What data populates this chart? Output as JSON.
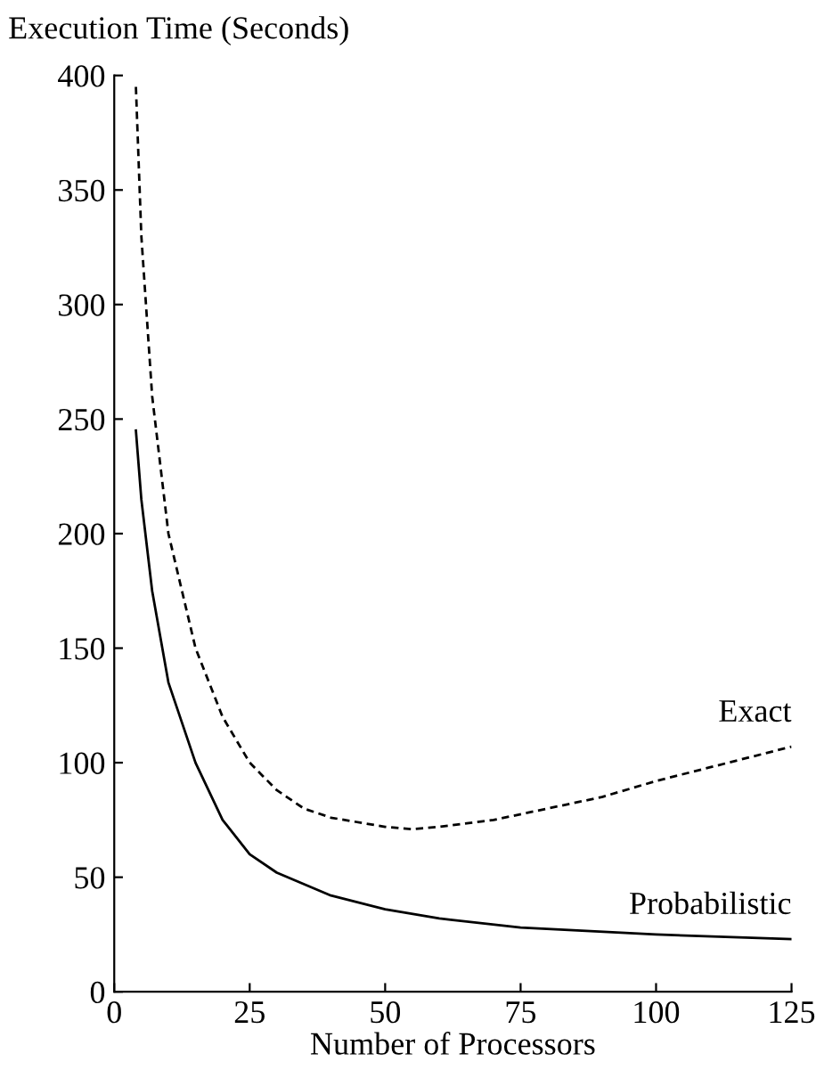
{
  "chart_data": {
    "type": "line",
    "ylabel": "Execution Time (Seconds)",
    "xlabel": "Number of Processors",
    "xlim": [
      0,
      125
    ],
    "xticks": [
      0,
      25,
      50,
      75,
      100,
      125
    ],
    "ylim": [
      0,
      400
    ],
    "yticks": [
      0,
      50,
      100,
      150,
      200,
      250,
      300,
      350,
      400
    ],
    "grid": false,
    "legend": false,
    "series": [
      {
        "name": "Exact",
        "color": "#000000",
        "line_style": "dashed",
        "x": [
          4,
          5,
          7,
          10,
          15,
          20,
          25,
          30,
          35,
          40,
          50,
          55,
          60,
          70,
          80,
          90,
          100,
          110,
          120,
          125
        ],
        "values": [
          395,
          330,
          260,
          200,
          150,
          120,
          100,
          88,
          80,
          76,
          72,
          71,
          72,
          75,
          80,
          85,
          92,
          98,
          104,
          107
        ]
      },
      {
        "name": "Probabilistic",
        "color": "#000000",
        "line_style": "solid",
        "x": [
          4,
          5,
          7,
          10,
          15,
          20,
          25,
          30,
          40,
          50,
          60,
          75,
          100,
          125
        ],
        "values": [
          245,
          215,
          175,
          135,
          100,
          75,
          60,
          52,
          42,
          36,
          32,
          28,
          25,
          23
        ]
      }
    ]
  }
}
